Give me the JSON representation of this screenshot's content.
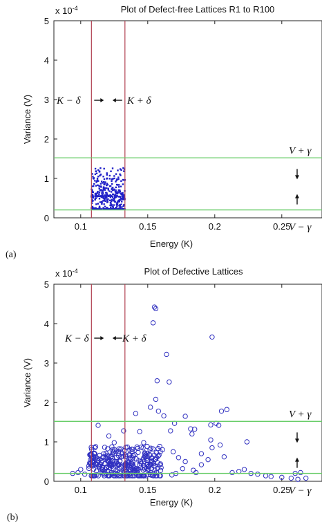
{
  "chart_data": [
    {
      "panel_label": "(a)",
      "type": "scatter",
      "title": "Plot of Defect-free Lattices R1 to R100",
      "xlabel": "Energy (K)",
      "ylabel": "Variance (V)",
      "y_scale_label": "x 10",
      "y_scale_exp": "-4",
      "xlim": [
        0.08,
        0.28
      ],
      "ylim": [
        0,
        5
      ],
      "xticks": [
        "0.1",
        "0.15",
        "0.2",
        "0.25"
      ],
      "yticks": [
        "0",
        "1",
        "2",
        "3",
        "4",
        "5"
      ],
      "grid": false,
      "marker": "filled-dot",
      "marker_color": "#2020c8",
      "vlines": [
        0.108,
        0.133
      ],
      "vline_color": "#b04050",
      "hlines": [
        1.52,
        0.2
      ],
      "hline_color": "#66cc66",
      "annotations": {
        "k_minus": "K − δ",
        "k_plus": "K + δ",
        "v_plus": "V + γ",
        "v_minus": "V − γ"
      },
      "cluster": {
        "x_range": [
          0.108,
          0.133
        ],
        "y_range": [
          0.22,
          1.52
        ],
        "y_center": 0.55,
        "count": 420,
        "seed": 7
      }
    },
    {
      "panel_label": "(b)",
      "type": "scatter",
      "title": "Plot of Defective Lattices",
      "xlabel": "Energy (K)",
      "ylabel": "Variance (V)",
      "y_scale_label": "x 10",
      "y_scale_exp": "-4",
      "xlim": [
        0.08,
        0.28
      ],
      "ylim": [
        0,
        5
      ],
      "xticks": [
        "0.1",
        "0.15",
        "0.2",
        "0.25"
      ],
      "yticks": [
        "0",
        "1",
        "2",
        "3",
        "4",
        "5"
      ],
      "grid": false,
      "marker": "open-circle",
      "marker_color": "#3030c0",
      "vlines": [
        0.108,
        0.133
      ],
      "vline_color": "#b04050",
      "hlines": [
        1.52,
        0.2
      ],
      "hline_color": "#66cc66",
      "annotations": {
        "k_minus": "K − δ",
        "k_plus": "K + δ",
        "v_plus": "V + γ",
        "v_minus": "V − γ"
      },
      "points": [
        [
          0.155,
          4.42
        ],
        [
          0.156,
          4.38
        ],
        [
          0.154,
          4.02
        ],
        [
          0.198,
          3.66
        ],
        [
          0.164,
          3.22
        ],
        [
          0.157,
          2.55
        ],
        [
          0.166,
          2.52
        ],
        [
          0.156,
          2.08
        ],
        [
          0.152,
          1.88
        ],
        [
          0.158,
          1.78
        ],
        [
          0.162,
          1.66
        ],
        [
          0.178,
          1.65
        ],
        [
          0.141,
          1.72
        ],
        [
          0.17,
          1.47
        ],
        [
          0.201,
          1.47
        ],
        [
          0.205,
          1.78
        ],
        [
          0.209,
          1.82
        ],
        [
          0.182,
          1.33
        ],
        [
          0.185,
          1.32
        ],
        [
          0.197,
          1.43
        ],
        [
          0.203,
          1.42
        ],
        [
          0.224,
          1.0
        ],
        [
          0.113,
          1.42
        ],
        [
          0.121,
          1.15
        ],
        [
          0.132,
          1.28
        ],
        [
          0.144,
          1.26
        ],
        [
          0.167,
          1.28
        ],
        [
          0.183,
          1.2
        ],
        [
          0.197,
          1.05
        ],
        [
          0.204,
          0.92
        ],
        [
          0.198,
          0.85
        ],
        [
          0.147,
          0.98
        ],
        [
          0.125,
          0.98
        ],
        [
          0.13,
          0.82
        ],
        [
          0.161,
          0.8
        ],
        [
          0.19,
          0.7
        ],
        [
          0.207,
          0.62
        ],
        [
          0.213,
          0.22
        ],
        [
          0.218,
          0.25
        ],
        [
          0.222,
          0.3
        ],
        [
          0.227,
          0.2
        ],
        [
          0.232,
          0.18
        ],
        [
          0.238,
          0.14
        ],
        [
          0.242,
          0.12
        ],
        [
          0.25,
          0.1
        ],
        [
          0.257,
          0.08
        ],
        [
          0.262,
          0.05
        ],
        [
          0.268,
          0.08
        ],
        [
          0.26,
          0.2
        ],
        [
          0.264,
          0.22
        ],
        [
          0.094,
          0.2
        ],
        [
          0.098,
          0.22
        ],
        [
          0.103,
          0.18
        ],
        [
          0.1,
          0.3
        ],
        [
          0.186,
          0.22
        ],
        [
          0.178,
          0.5
        ],
        [
          0.173,
          0.6
        ],
        [
          0.169,
          0.75
        ],
        [
          0.19,
          0.42
        ],
        [
          0.195,
          0.55
        ],
        [
          0.176,
          0.32
        ],
        [
          0.184,
          0.28
        ],
        [
          0.171,
          0.2
        ],
        [
          0.168,
          0.16
        ]
      ],
      "cluster": {
        "x_range": [
          0.106,
          0.16
        ],
        "y_range": [
          0.14,
          1.0
        ],
        "y_center": 0.42,
        "count": 320,
        "seed": 11
      }
    }
  ]
}
